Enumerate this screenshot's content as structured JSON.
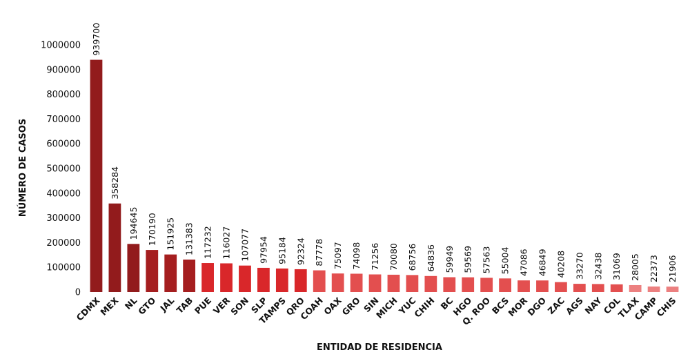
{
  "chart_data": {
    "type": "bar",
    "xlabel": "ENTIDAD DE RESIDENCIA",
    "ylabel": "NÚMERO DE CASOS",
    "ylim": [
      0,
      1000000
    ],
    "yticks": [
      0,
      100000,
      200000,
      300000,
      400000,
      500000,
      600000,
      700000,
      800000,
      900000,
      1000000
    ],
    "grid": false,
    "categories": [
      "CDMX",
      "MEX",
      "NL",
      "GTO",
      "JAL",
      "TAB",
      "PUE",
      "VER",
      "SON",
      "SLP",
      "TAMPS",
      "QRO",
      "COAH",
      "OAX",
      "GRO",
      "SIN",
      "MICH",
      "YUC",
      "CHIH",
      "BC",
      "HGO",
      "Q. ROO",
      "BCS",
      "MOR",
      "DGO",
      "ZAC",
      "AGS",
      "NAY",
      "COL",
      "TLAX",
      "CAMP",
      "CHIS"
    ],
    "values": [
      939700,
      358284,
      194645,
      170190,
      151925,
      131383,
      117232,
      116027,
      107077,
      97954,
      95184,
      92324,
      87778,
      75097,
      74098,
      71256,
      70080,
      68756,
      64836,
      59949,
      59569,
      57563,
      55004,
      47086,
      46849,
      40208,
      33270,
      32438,
      31069,
      28005,
      22373,
      21906
    ],
    "colors": [
      "#921b1c",
      "#921b1c",
      "#921b1c",
      "#a51e1f",
      "#a51e1f",
      "#a51e1f",
      "#d9272a",
      "#d9272a",
      "#d9272a",
      "#d9272a",
      "#d9272a",
      "#d9272a",
      "#e34f4f",
      "#e34f4f",
      "#e34f4f",
      "#e34f4f",
      "#e34f4f",
      "#e34f4f",
      "#e34f4f",
      "#e34f4f",
      "#e34f4f",
      "#e34f4f",
      "#e34f4f",
      "#e34f4f",
      "#e34f4f",
      "#e34f4f",
      "#e34f4f",
      "#e34f4f",
      "#e34f4f",
      "#ec8080",
      "#ec8080",
      "#ec8080"
    ]
  }
}
